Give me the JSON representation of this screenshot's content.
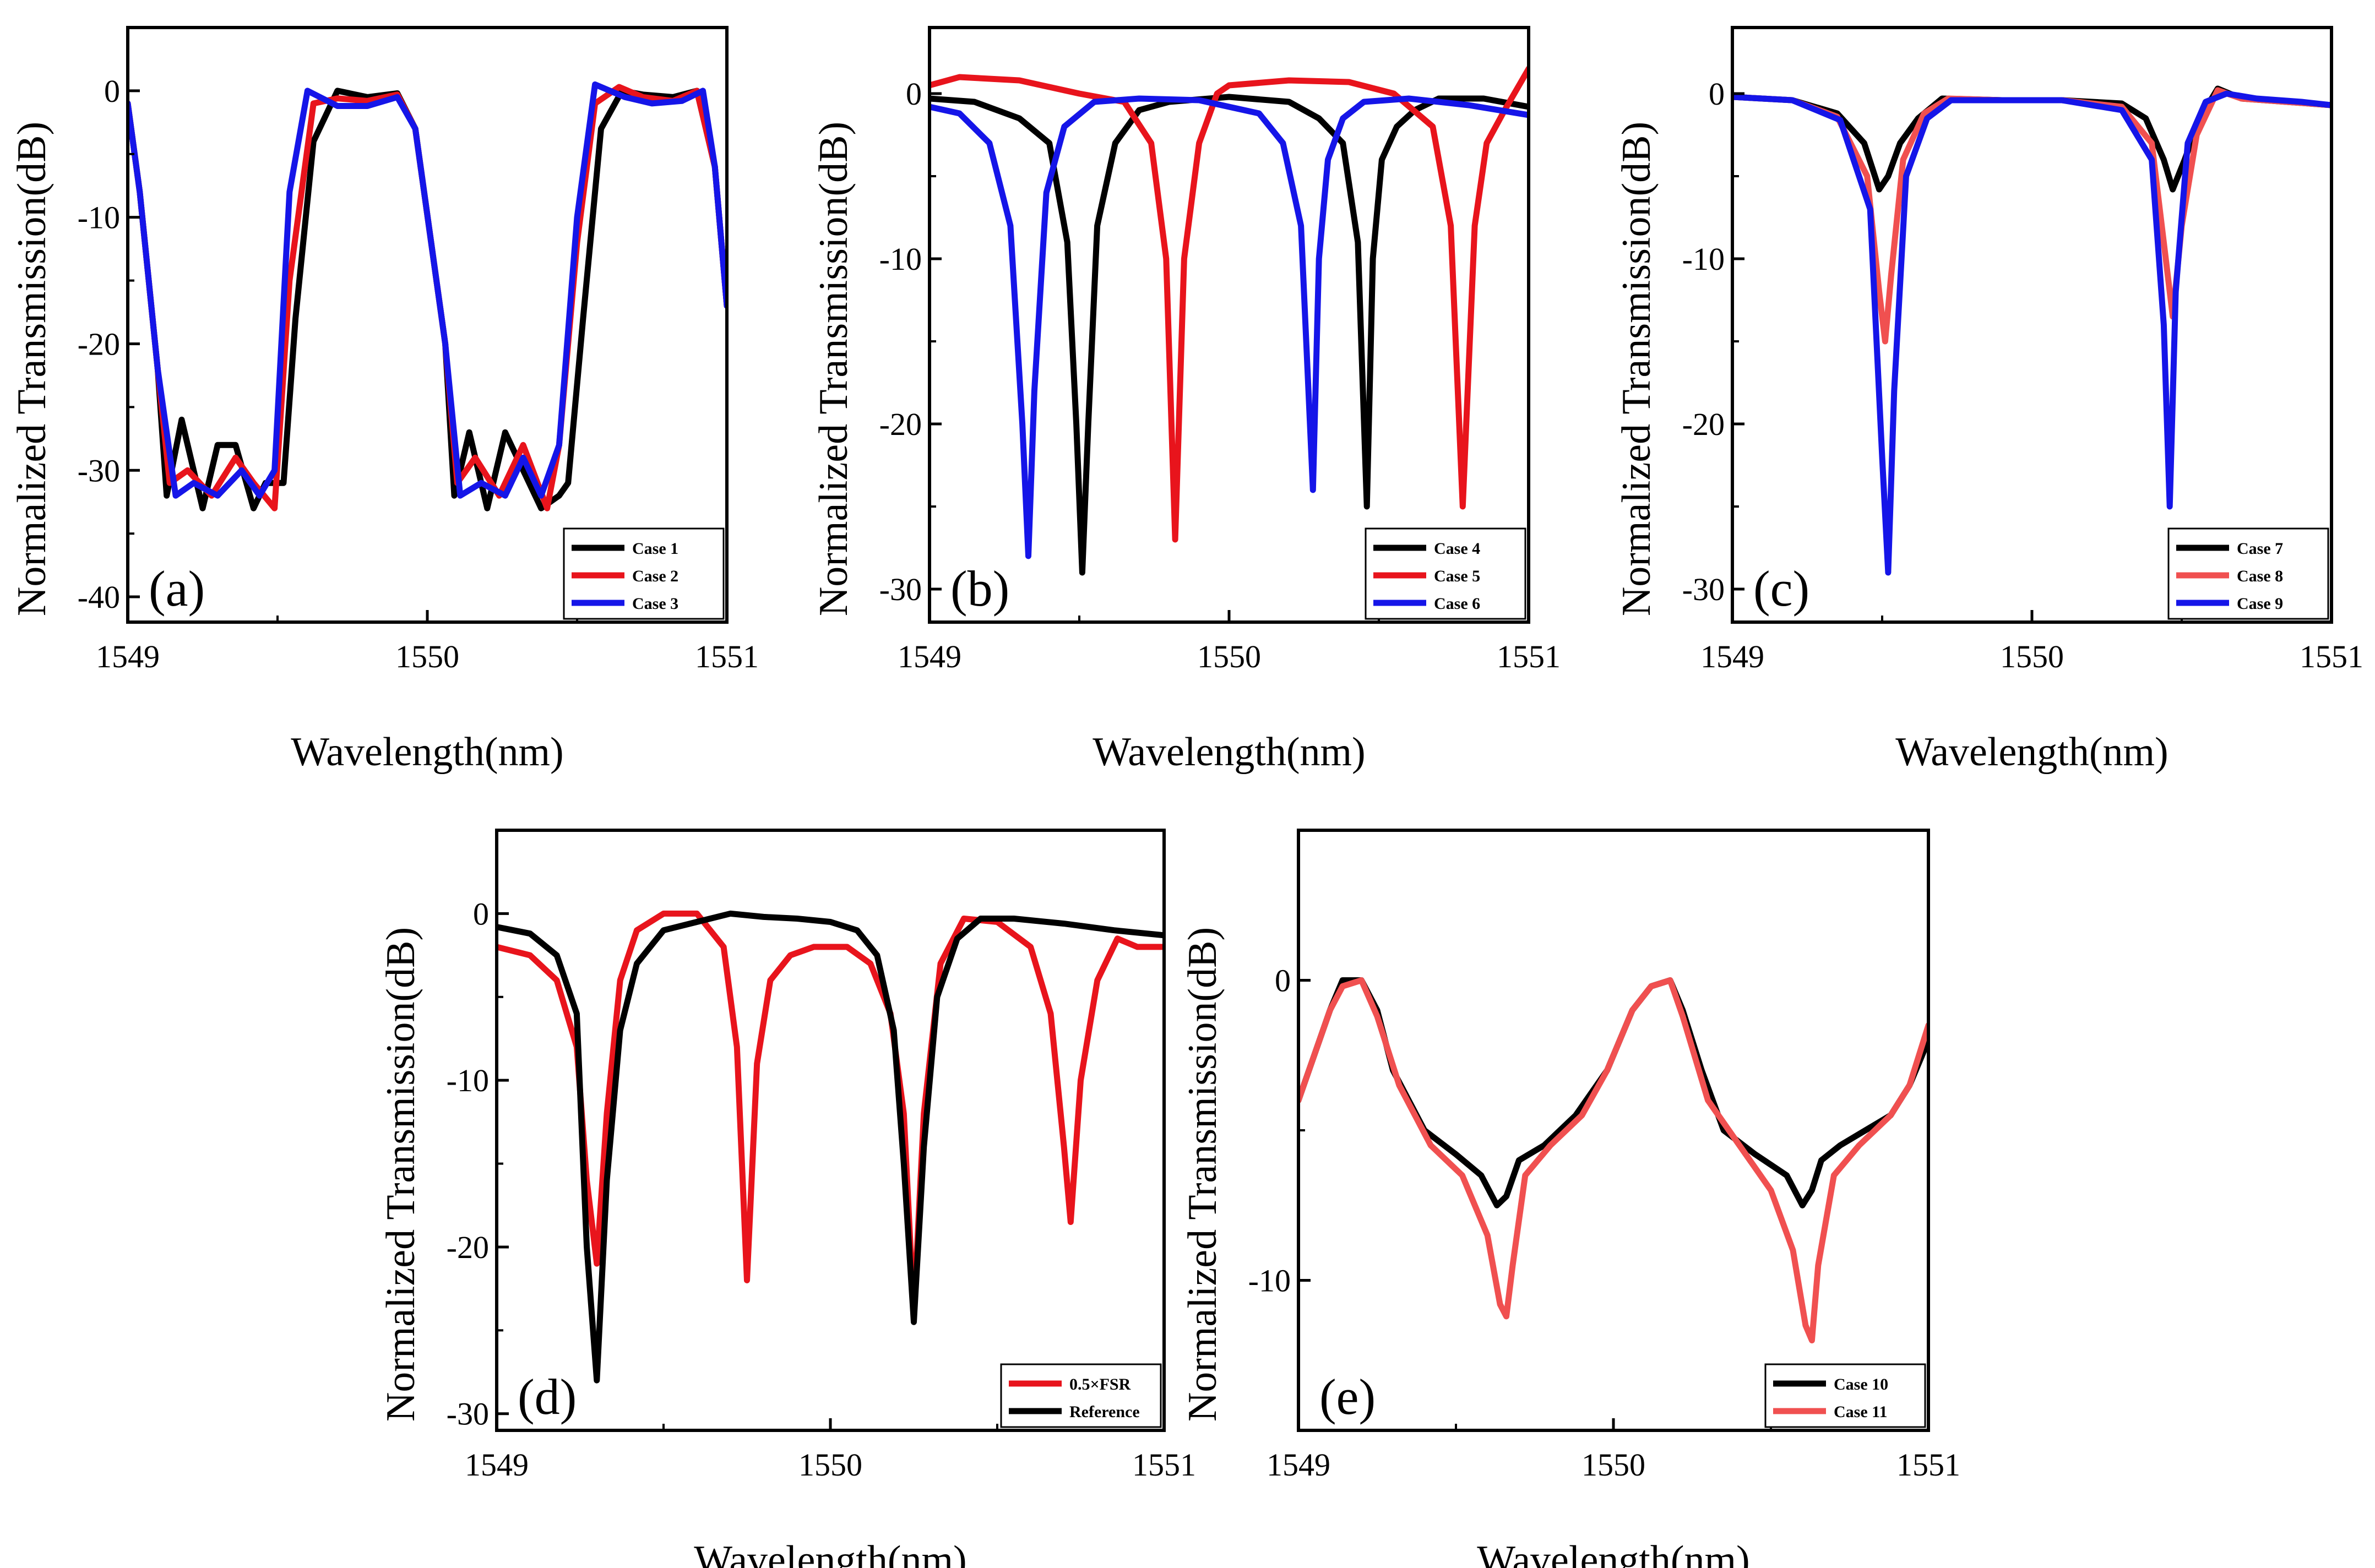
{
  "chart_data": [
    {
      "panel_label": "(a)",
      "type": "line",
      "xlabel": "Wavelength(nm)",
      "ylabel": "Normalized Transmission(dB)",
      "xlim": [
        1549,
        1551
      ],
      "ylim": [
        -42,
        5
      ],
      "xticks": [
        "1549",
        "1550",
        "1551"
      ],
      "yticks": [
        "0",
        "-10",
        "-20",
        "-30",
        "-40"
      ],
      "ytick_values": [
        0,
        -10,
        -20,
        -30,
        -40
      ],
      "legend_position": "bottom-right",
      "series": [
        {
          "name": "Case 1",
          "color": "#000000",
          "x": [
            1549.0,
            1549.04,
            1549.1,
            1549.13,
            1549.18,
            1549.25,
            1549.3,
            1549.36,
            1549.42,
            1549.46,
            1549.52,
            1549.56,
            1549.62,
            1549.7,
            1549.8,
            1549.9,
            1549.96,
            1550.06,
            1550.09,
            1550.14,
            1550.2,
            1550.26,
            1550.32,
            1550.38,
            1550.44,
            1550.47,
            1550.52,
            1550.58,
            1550.65,
            1550.72,
            1550.82,
            1550.9,
            1550.96,
            1551.0
          ],
          "y": [
            -1,
            -8,
            -22,
            -32,
            -26,
            -33,
            -28,
            -28,
            -33,
            -31,
            -31,
            -18,
            -4,
            0,
            -0.5,
            -0.2,
            -3,
            -20,
            -32,
            -27,
            -33,
            -27,
            -30,
            -33,
            -32,
            -31,
            -18,
            -3,
            0,
            -0.3,
            -0.5,
            0,
            -6,
            -17
          ]
        },
        {
          "name": "Case 2",
          "color": "#e8141c",
          "x": [
            1549.0,
            1549.04,
            1549.1,
            1549.14,
            1549.2,
            1549.28,
            1549.36,
            1549.42,
            1549.49,
            1549.54,
            1549.62,
            1549.7,
            1549.8,
            1549.9,
            1549.96,
            1550.06,
            1550.1,
            1550.16,
            1550.24,
            1550.32,
            1550.4,
            1550.44,
            1550.5,
            1550.56,
            1550.64,
            1550.72,
            1550.82,
            1550.9,
            1550.96,
            1551.0
          ],
          "y": [
            -1,
            -8,
            -22,
            -31,
            -30,
            -32,
            -29,
            -31,
            -33,
            -15,
            -1,
            -0.6,
            -0.8,
            -0.3,
            -3,
            -20,
            -31,
            -29,
            -32,
            -28,
            -33,
            -28,
            -12,
            -1,
            0.3,
            -0.5,
            -0.8,
            0,
            -6,
            -17
          ]
        },
        {
          "name": "Case 3",
          "color": "#1515e8",
          "x": [
            1549.0,
            1549.04,
            1549.1,
            1549.16,
            1549.22,
            1549.3,
            1549.38,
            1549.44,
            1549.49,
            1549.54,
            1549.6,
            1549.7,
            1549.8,
            1549.9,
            1549.96,
            1550.06,
            1550.11,
            1550.18,
            1550.26,
            1550.32,
            1550.38,
            1550.44,
            1550.5,
            1550.56,
            1550.66,
            1550.75,
            1550.85,
            1550.92,
            1550.96,
            1551.0
          ],
          "y": [
            -1,
            -8,
            -22,
            -32,
            -31,
            -32,
            -30,
            -32,
            -30,
            -8,
            0,
            -1.2,
            -1.2,
            -0.5,
            -3,
            -20,
            -32,
            -31,
            -32,
            -29,
            -32,
            -28,
            -10,
            0.5,
            -0.5,
            -1,
            -0.8,
            0,
            -6,
            -17
          ]
        }
      ],
      "legend": [
        "Case 1",
        "Case 2",
        "Case 3"
      ]
    },
    {
      "panel_label": "(b)",
      "type": "line",
      "xlabel": "Wavelength(nm)",
      "ylabel": "Normalized Transmission(dB)",
      "xlim": [
        1549,
        1551
      ],
      "ylim": [
        -32,
        4
      ],
      "xticks": [
        "1549",
        "1550",
        "1551"
      ],
      "yticks": [
        "0",
        "-10",
        "-20",
        "-30"
      ],
      "ytick_values": [
        0,
        -10,
        -20,
        -30
      ],
      "legend_position": "bottom-right",
      "series": [
        {
          "name": "Case 4",
          "color": "#000000",
          "x": [
            1549.0,
            1549.15,
            1549.3,
            1549.4,
            1549.46,
            1549.49,
            1549.51,
            1549.53,
            1549.56,
            1549.62,
            1549.7,
            1549.8,
            1550.0,
            1550.2,
            1550.3,
            1550.38,
            1550.43,
            1550.46,
            1550.48,
            1550.51,
            1550.56,
            1550.62,
            1550.7,
            1550.85,
            1551.0
          ],
          "y": [
            -0.3,
            -0.5,
            -1.5,
            -3,
            -9,
            -20,
            -29,
            -20,
            -8,
            -3,
            -1,
            -0.5,
            -0.2,
            -0.5,
            -1.5,
            -3,
            -9,
            -25,
            -10,
            -4,
            -2,
            -1,
            -0.3,
            -0.3,
            -0.8
          ]
        },
        {
          "name": "Case 5",
          "color": "#e8141c",
          "x": [
            1549.0,
            1549.1,
            1549.3,
            1549.5,
            1549.65,
            1549.74,
            1549.79,
            1549.82,
            1549.85,
            1549.9,
            1549.96,
            1550.0,
            1550.2,
            1550.4,
            1550.55,
            1550.68,
            1550.74,
            1550.78,
            1550.82,
            1550.86,
            1550.92,
            1551.0
          ],
          "y": [
            0.5,
            1,
            0.8,
            0,
            -0.5,
            -3,
            -10,
            -27,
            -10,
            -3,
            0,
            0.5,
            0.8,
            0.7,
            0,
            -2,
            -8,
            -25,
            -8,
            -3,
            -1,
            1.5
          ]
        },
        {
          "name": "Case 6",
          "color": "#1515e8",
          "x": [
            1549.0,
            1549.1,
            1549.2,
            1549.27,
            1549.31,
            1549.33,
            1549.35,
            1549.39,
            1549.45,
            1549.55,
            1549.7,
            1549.9,
            1550.1,
            1550.18,
            1550.24,
            1550.28,
            1550.3,
            1550.33,
            1550.38,
            1550.45,
            1550.6,
            1550.8,
            1551.0
          ],
          "y": [
            -0.8,
            -1.2,
            -3,
            -8,
            -20,
            -28,
            -18,
            -6,
            -2,
            -0.5,
            -0.3,
            -0.4,
            -1.2,
            -3,
            -8,
            -24,
            -10,
            -4,
            -1.5,
            -0.5,
            -0.3,
            -0.7,
            -1.3
          ]
        }
      ],
      "legend": [
        "Case 4",
        "Case 5",
        "Case 6"
      ]
    },
    {
      "panel_label": "(c)",
      "type": "line",
      "xlabel": "Wavelength(nm)",
      "ylabel": "Normalized Transmission(dB)",
      "xlim": [
        1549,
        1551
      ],
      "ylim": [
        -32,
        4
      ],
      "xticks": [
        "1549",
        "1550",
        "1551"
      ],
      "yticks": [
        "0",
        "-10",
        "-20",
        "-30"
      ],
      "ytick_values": [
        0,
        -10,
        -20,
        -30
      ],
      "legend_position": "bottom-right",
      "series": [
        {
          "name": "Case 7",
          "color": "#000000",
          "x": [
            1549.0,
            1549.2,
            1549.35,
            1549.44,
            1549.49,
            1549.52,
            1549.56,
            1549.62,
            1549.7,
            1549.9,
            1550.1,
            1550.3,
            1550.38,
            1550.44,
            1550.47,
            1550.51,
            1550.56,
            1550.62,
            1550.7,
            1550.85,
            1551.0
          ],
          "y": [
            -0.2,
            -0.4,
            -1.2,
            -3,
            -5.8,
            -5,
            -3,
            -1.5,
            -0.3,
            -0.4,
            -0.4,
            -0.6,
            -1.5,
            -4,
            -5.8,
            -4,
            -1.5,
            0.3,
            -0.3,
            -0.5,
            -0.7
          ]
        },
        {
          "name": "Case 8",
          "color": "#f05050",
          "x": [
            1549.0,
            1549.2,
            1549.35,
            1549.45,
            1549.49,
            1549.51,
            1549.53,
            1549.57,
            1549.64,
            1549.72,
            1549.9,
            1550.1,
            1550.3,
            1550.4,
            1550.44,
            1550.47,
            1550.5,
            1550.55,
            1550.62,
            1550.7,
            1550.85,
            1551.0
          ],
          "y": [
            -0.2,
            -0.4,
            -1.4,
            -5,
            -12,
            -15,
            -11,
            -4,
            -1.2,
            -0.3,
            -0.4,
            -0.4,
            -0.8,
            -3,
            -9,
            -13.5,
            -8,
            -2.5,
            0.2,
            -0.3,
            -0.5,
            -0.7
          ]
        },
        {
          "name": "Case 9",
          "color": "#1515e8",
          "x": [
            1549.0,
            1549.2,
            1549.36,
            1549.46,
            1549.5,
            1549.52,
            1549.54,
            1549.58,
            1549.65,
            1549.73,
            1549.9,
            1550.1,
            1550.3,
            1550.4,
            1550.44,
            1550.46,
            1550.48,
            1550.52,
            1550.58,
            1550.65,
            1550.75,
            1550.9,
            1551.0
          ],
          "y": [
            -0.2,
            -0.4,
            -1.6,
            -7,
            -22,
            -29,
            -18,
            -5,
            -1.5,
            -0.4,
            -0.4,
            -0.4,
            -1,
            -4,
            -14,
            -25,
            -12,
            -3,
            -0.5,
            0,
            -0.3,
            -0.5,
            -0.7
          ]
        }
      ],
      "legend": [
        "Case 7",
        "Case 8",
        "Case 9"
      ]
    },
    {
      "panel_label": "(d)",
      "type": "line",
      "xlabel": "Wavelength(nm)",
      "ylabel": "Normalized Transmission(dB)",
      "xlim": [
        1549,
        1551
      ],
      "ylim": [
        -31,
        5
      ],
      "xticks": [
        "1549",
        "1550",
        "1551"
      ],
      "yticks": [
        "0",
        "-10",
        "-20",
        "-30"
      ],
      "ytick_values": [
        0,
        -10,
        -20,
        -30
      ],
      "legend_position": "bottom-right",
      "series": [
        {
          "name": "0.5×FSR",
          "color": "#e8141c",
          "x": [
            1549.0,
            1549.1,
            1549.18,
            1549.24,
            1549.27,
            1549.3,
            1549.33,
            1549.37,
            1549.42,
            1549.5,
            1549.6,
            1549.68,
            1549.72,
            1549.75,
            1549.78,
            1549.82,
            1549.88,
            1549.95,
            1550.05,
            1550.12,
            1550.18,
            1550.22,
            1550.25,
            1550.28,
            1550.33,
            1550.4,
            1550.5,
            1550.6,
            1550.66,
            1550.7,
            1550.72,
            1550.75,
            1550.8,
            1550.86,
            1550.92,
            1551.0
          ],
          "y": [
            -2,
            -2.5,
            -4,
            -8,
            -16,
            -21,
            -12,
            -4,
            -1,
            0,
            0,
            -2,
            -8,
            -22,
            -9,
            -4,
            -2.5,
            -2,
            -2,
            -3,
            -6,
            -12,
            -24,
            -12,
            -3,
            -0.3,
            -0.5,
            -2,
            -6,
            -14,
            -18.5,
            -10,
            -4,
            -1.5,
            -2,
            -2
          ]
        },
        {
          "name": "Reference",
          "color": "#000000",
          "x": [
            1549.0,
            1549.1,
            1549.18,
            1549.24,
            1549.27,
            1549.3,
            1549.33,
            1549.37,
            1549.42,
            1549.5,
            1549.6,
            1549.7,
            1549.8,
            1549.9,
            1550.0,
            1550.08,
            1550.14,
            1550.19,
            1550.22,
            1550.25,
            1550.28,
            1550.32,
            1550.38,
            1550.45,
            1550.55,
            1550.7,
            1550.85,
            1551.0
          ],
          "y": [
            -0.8,
            -1.2,
            -2.5,
            -6,
            -20,
            -28,
            -16,
            -7,
            -3,
            -1,
            -0.5,
            0,
            -0.2,
            -0.3,
            -0.5,
            -1,
            -2.5,
            -7,
            -15,
            -24.5,
            -14,
            -5,
            -1.5,
            -0.3,
            -0.3,
            -0.6,
            -1,
            -1.3
          ]
        }
      ],
      "legend": [
        "0.5×FSR",
        "Reference"
      ]
    },
    {
      "panel_label": "(e)",
      "type": "line",
      "xlabel": "Wavelength(nm)",
      "ylabel": "Normalized Transmission(dB)",
      "xlim": [
        1549,
        1551
      ],
      "ylim": [
        -15,
        5
      ],
      "xticks": [
        "1549",
        "1550",
        "1551"
      ],
      "yticks": [
        "0",
        "-10"
      ],
      "ytick_values": [
        0,
        -10
      ],
      "legend_position": "bottom-right",
      "series": [
        {
          "name": "Case 10",
          "color": "#000000",
          "x": [
            1549.0,
            1549.05,
            1549.1,
            1549.14,
            1549.2,
            1549.25,
            1549.3,
            1549.4,
            1549.5,
            1549.58,
            1549.63,
            1549.66,
            1549.7,
            1549.78,
            1549.88,
            1549.98,
            1550.06,
            1550.12,
            1550.18,
            1550.22,
            1550.28,
            1550.35,
            1550.45,
            1550.55,
            1550.6,
            1550.63,
            1550.66,
            1550.72,
            1550.8,
            1550.88,
            1550.94,
            1551.0
          ],
          "y": [
            -4,
            -2.5,
            -1,
            0,
            0,
            -1,
            -3,
            -5,
            -5.8,
            -6.5,
            -7.5,
            -7.2,
            -6,
            -5.5,
            -4.5,
            -3,
            -1,
            -0.2,
            0,
            -1,
            -3,
            -5,
            -5.8,
            -6.5,
            -7.5,
            -7,
            -6,
            -5.5,
            -5,
            -4.5,
            -3.5,
            -2
          ]
        },
        {
          "name": "Case 11",
          "color": "#f05050",
          "x": [
            1549.0,
            1549.05,
            1549.1,
            1549.14,
            1549.2,
            1549.25,
            1549.32,
            1549.42,
            1549.52,
            1549.6,
            1549.64,
            1549.66,
            1549.68,
            1549.72,
            1549.8,
            1549.9,
            1549.98,
            1550.06,
            1550.12,
            1550.18,
            1550.22,
            1550.3,
            1550.4,
            1550.5,
            1550.57,
            1550.61,
            1550.63,
            1550.65,
            1550.7,
            1550.78,
            1550.88,
            1550.94,
            1551.0
          ],
          "y": [
            -4,
            -2.5,
            -1,
            -0.2,
            0,
            -1.2,
            -3.5,
            -5.5,
            -6.5,
            -8.5,
            -10.8,
            -11.2,
            -9.5,
            -6.5,
            -5.5,
            -4.5,
            -3,
            -1,
            -0.2,
            0,
            -1.2,
            -4,
            -5.5,
            -7,
            -9,
            -11.5,
            -12,
            -9.5,
            -6.5,
            -5.5,
            -4.5,
            -3.5,
            -1.5
          ]
        }
      ],
      "legend": [
        "Case 10",
        "Case 11"
      ]
    }
  ]
}
